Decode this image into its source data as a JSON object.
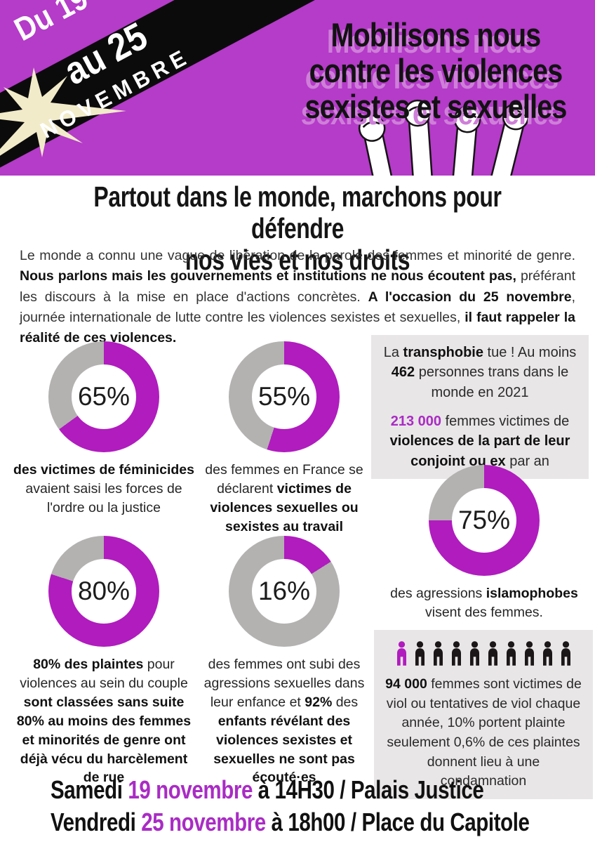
{
  "colors": {
    "header_bg": "#b53bc9",
    "donut_fill": "#b01cbe",
    "donut_rest": "#b4b1b1",
    "accent": "#a92cc4",
    "echo": "#cf7fd9",
    "box_bg": "#e9e6e7",
    "ribbon": "#0c0b0c",
    "star": "#f1ebc9"
  },
  "header": {
    "ribbon": {
      "line1": "Du 19",
      "line2": "au 25",
      "line3": "NOVEMBRE"
    },
    "title_lines": [
      "Mobilisons nous",
      "contre les violences",
      "sexistes et sexuelles"
    ]
  },
  "intro": {
    "headline_lines": [
      "Partout dans le monde, marchons pour défendre",
      "nos vies et nos droits"
    ],
    "segments": [
      {
        "t": "Le monde a connu une vague de libération de la parole des femmes et minorité de genre. ",
        "b": false
      },
      {
        "t": "Nous parlons mais les gouvernements et institutions ne nous écoutent pas,",
        "b": true
      },
      {
        "t": " préférant les discours à la mise en place d'actions concrètes. ",
        "b": false
      },
      {
        "t": "A l'occasion du 25 novembre",
        "b": true
      },
      {
        "t": ", journée internationale de lutte contre les violences sexistes et sexuelles, ",
        "b": false
      },
      {
        "t": "il faut rappeler la réalité de ces violences.",
        "b": true
      }
    ]
  },
  "chart_data": [
    {
      "type": "pie",
      "subtype": "donut",
      "label": "65%",
      "value": 65,
      "series": [
        {
          "name": "part",
          "value": 65
        },
        {
          "name": "reste",
          "value": 35
        }
      ],
      "caption_segments": [
        {
          "t": "des victimes de féminicides",
          "b": true
        },
        {
          "t": " avaient saisi les forces de l'ordre ou la justice",
          "b": false
        }
      ]
    },
    {
      "type": "pie",
      "subtype": "donut",
      "label": "55%",
      "value": 55,
      "series": [
        {
          "name": "part",
          "value": 55
        },
        {
          "name": "reste",
          "value": 45
        }
      ],
      "caption_segments": [
        {
          "t": "des femmes en France se déclarent ",
          "b": false
        },
        {
          "t": "victimes de violences sexuelles ou sexistes au travail",
          "b": true
        }
      ]
    },
    {
      "type": "pie",
      "subtype": "donut",
      "label": "80%",
      "value": 80,
      "series": [
        {
          "name": "part",
          "value": 80
        },
        {
          "name": "reste",
          "value": 20
        }
      ],
      "caption_segments": [
        {
          "t": "80% des plaintes",
          "b": true
        },
        {
          "t": " pour violences au sein du couple ",
          "b": false
        },
        {
          "t": "sont classées sans suite 80% au moins des femmes et minorités de genre ont déjà vécu du harcèlement de rue",
          "b": true
        }
      ]
    },
    {
      "type": "pie",
      "subtype": "donut",
      "label": "16%",
      "value": 16,
      "series": [
        {
          "name": "part",
          "value": 16
        },
        {
          "name": "reste",
          "value": 84
        }
      ],
      "caption_segments": [
        {
          "t": "des femmes ont subi des agressions sexuelles dans leur enfance et ",
          "b": false
        },
        {
          "t": "92%",
          "b": true
        },
        {
          "t": " des ",
          "b": false
        },
        {
          "t": "enfants révélant des violences sexistes et sexuelles ne sont pas écouté·es",
          "b": true
        }
      ]
    },
    {
      "type": "pie",
      "subtype": "donut",
      "label": "75%",
      "value": 75,
      "series": [
        {
          "name": "part",
          "value": 75
        },
        {
          "name": "reste",
          "value": 25
        }
      ],
      "caption_segments": [
        {
          "t": "des agressions ",
          "b": false
        },
        {
          "t": "islamophobes",
          "b": true
        },
        {
          "t": " visent des femmes.",
          "b": false
        }
      ]
    },
    {
      "type": "pictogram",
      "total": 10,
      "highlighted": 1,
      "caption_segments": [
        {
          "t": "94 000",
          "b": true
        },
        {
          "t": " femmes sont victimes de viol ou tentatives de viol chaque année, 10% portent plainte seulement 0,6% de ces plaintes donnent lieu à une condamnation",
          "b": false
        }
      ]
    }
  ],
  "stat_boxes": {
    "trans_segments": [
      {
        "t": "La ",
        "b": false
      },
      {
        "t": "transphobie",
        "b": true
      },
      {
        "t": " tue ! Au moins ",
        "b": false
      },
      {
        "t": "462",
        "b": true
      },
      {
        "t": " personnes trans dans le monde en 2021",
        "b": false
      }
    ],
    "conjoint_segments": [
      {
        "t": "213 000",
        "b": true,
        "c": "accent"
      },
      {
        "t": " femmes victimes de ",
        "b": false
      },
      {
        "t": "violences de la part de leur conjoint ou ex",
        "b": true
      },
      {
        "t": " par an",
        "b": false
      }
    ]
  },
  "footer": {
    "lines": [
      [
        {
          "t": "Samedi ",
          "b": true
        },
        {
          "t": "19 novembre",
          "b": true,
          "c": "accent"
        },
        {
          "t": " à 14H30 / Palais Justice",
          "b": true
        }
      ],
      [
        {
          "t": "Vendredi ",
          "b": true
        },
        {
          "t": "25 novembre",
          "b": true,
          "c": "accent"
        },
        {
          "t": " à 18h00 / Place du Capitole",
          "b": true
        }
      ]
    ]
  }
}
